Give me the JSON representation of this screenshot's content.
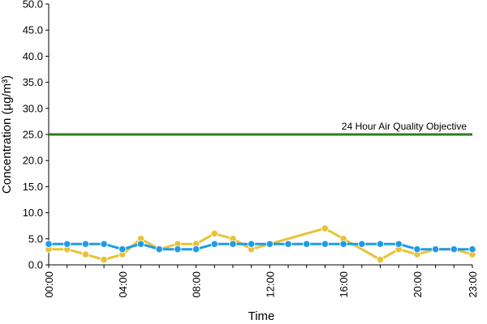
{
  "chart_data": {
    "type": "line",
    "xlabel": "Time",
    "ylabel": "Concentration (µg/m³)",
    "ylim": [
      0,
      50
    ],
    "yticks": [
      "0.0",
      "5.0",
      "10.0",
      "15.0",
      "20.0",
      "25.0",
      "30.0",
      "35.0",
      "40.0",
      "45.0",
      "50.0"
    ],
    "x_tick_labels": [
      "00:00",
      "04:00",
      "08:00",
      "12:00",
      "16:00",
      "20:00",
      "23:00"
    ],
    "x_tick_hours": [
      0,
      4,
      8,
      12,
      16,
      20,
      23
    ],
    "hours": [
      0,
      1,
      2,
      3,
      4,
      5,
      6,
      7,
      8,
      9,
      10,
      11,
      12,
      13,
      14,
      15,
      16,
      17,
      18,
      19,
      20,
      21,
      22,
      23
    ],
    "series": [
      {
        "color": "#e8c237",
        "values": [
          3,
          3,
          2,
          1,
          2,
          5,
          3,
          4,
          4,
          6,
          5,
          3,
          4,
          null,
          null,
          7,
          5,
          null,
          1,
          3,
          2,
          3,
          3,
          2
        ]
      },
      {
        "color": "#1f9be8",
        "values": [
          4,
          4,
          4,
          4,
          3,
          4,
          3,
          3,
          3,
          4,
          4,
          4,
          4,
          4,
          4,
          4,
          4,
          4,
          4,
          4,
          3,
          3,
          3,
          3
        ]
      }
    ],
    "objective": {
      "value": 25,
      "label": "24 Hour Air Quality Objective",
      "color": "#2e7d1e"
    },
    "grid": false
  }
}
